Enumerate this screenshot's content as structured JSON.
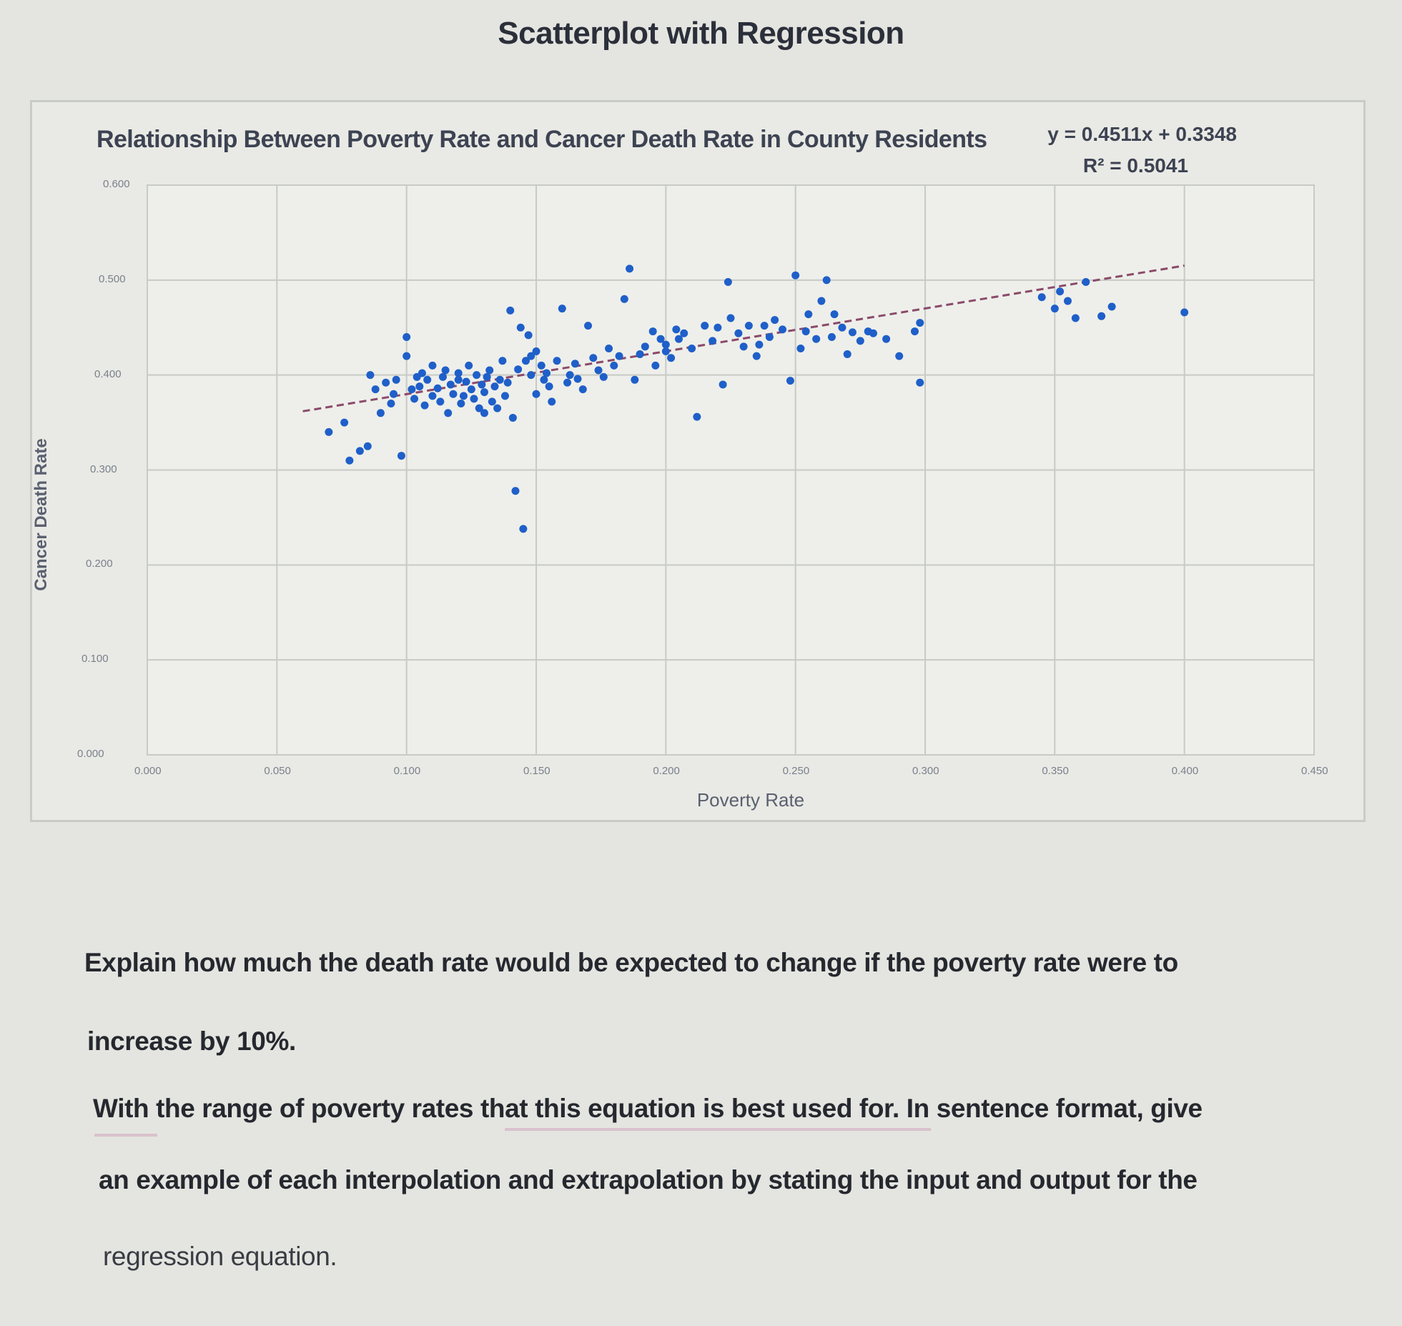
{
  "page": {
    "title": "Scatterplot with Regression"
  },
  "chart": {
    "title": "Relationship Between Poverty Rate and Cancer Death Rate in County Residents",
    "trendline_equation": "y = 0.4511x + 0.3348",
    "trendline_r2": "R² = 0.5041",
    "x_axis_label": "Poverty Rate",
    "y_axis_label": "Cancer Death Rate",
    "x_ticks": [
      "0.000",
      "0.050",
      "0.100",
      "0.150",
      "0.200",
      "0.250",
      "0.300",
      "0.350",
      "0.400",
      "0.450"
    ],
    "y_ticks": [
      "0.000",
      "0.100",
      "0.200",
      "0.300",
      "0.400",
      "0.500",
      "0.600"
    ],
    "marker_color": "#1f5fc9",
    "trendline_color": "#8a4a6a"
  },
  "chart_data": {
    "type": "scatter",
    "title": "Relationship Between Poverty Rate and Cancer Death Rate in County Residents",
    "xlabel": "Poverty Rate",
    "ylabel": "Cancer Death Rate",
    "xlim": [
      0,
      0.45
    ],
    "ylim": [
      0,
      0.6
    ],
    "grid": true,
    "legend": "none",
    "trendline": {
      "type": "linear",
      "slope": 0.4511,
      "intercept": 0.3348,
      "r2": 0.5041,
      "x_range": [
        0.06,
        0.4
      ],
      "style": "dashed"
    },
    "series": [
      {
        "name": "Counties",
        "x": [
          0.07,
          0.076,
          0.078,
          0.082,
          0.085,
          0.086,
          0.088,
          0.09,
          0.092,
          0.094,
          0.095,
          0.096,
          0.098,
          0.1,
          0.1,
          0.102,
          0.103,
          0.104,
          0.105,
          0.106,
          0.107,
          0.108,
          0.11,
          0.11,
          0.112,
          0.113,
          0.114,
          0.115,
          0.116,
          0.117,
          0.118,
          0.12,
          0.12,
          0.121,
          0.122,
          0.123,
          0.124,
          0.125,
          0.126,
          0.127,
          0.128,
          0.129,
          0.13,
          0.13,
          0.131,
          0.132,
          0.133,
          0.134,
          0.135,
          0.136,
          0.137,
          0.138,
          0.139,
          0.14,
          0.141,
          0.142,
          0.143,
          0.144,
          0.145,
          0.146,
          0.147,
          0.148,
          0.148,
          0.15,
          0.15,
          0.152,
          0.153,
          0.154,
          0.155,
          0.156,
          0.158,
          0.16,
          0.162,
          0.163,
          0.165,
          0.166,
          0.168,
          0.17,
          0.172,
          0.174,
          0.176,
          0.178,
          0.18,
          0.182,
          0.184,
          0.186,
          0.188,
          0.19,
          0.192,
          0.195,
          0.196,
          0.198,
          0.2,
          0.2,
          0.202,
          0.204,
          0.205,
          0.207,
          0.21,
          0.212,
          0.215,
          0.218,
          0.22,
          0.222,
          0.224,
          0.225,
          0.228,
          0.23,
          0.232,
          0.235,
          0.236,
          0.238,
          0.24,
          0.242,
          0.245,
          0.248,
          0.25,
          0.252,
          0.254,
          0.255,
          0.258,
          0.26,
          0.262,
          0.264,
          0.265,
          0.268,
          0.27,
          0.272,
          0.275,
          0.278,
          0.28,
          0.285,
          0.29,
          0.296,
          0.298,
          0.298,
          0.345,
          0.35,
          0.352,
          0.355,
          0.358,
          0.362,
          0.368,
          0.372,
          0.4
        ],
        "y": [
          0.34,
          0.35,
          0.31,
          0.32,
          0.325,
          0.4,
          0.385,
          0.36,
          0.392,
          0.37,
          0.38,
          0.395,
          0.315,
          0.44,
          0.42,
          0.385,
          0.375,
          0.398,
          0.388,
          0.402,
          0.368,
          0.395,
          0.378,
          0.41,
          0.386,
          0.372,
          0.398,
          0.405,
          0.36,
          0.39,
          0.38,
          0.395,
          0.402,
          0.37,
          0.378,
          0.393,
          0.41,
          0.385,
          0.375,
          0.4,
          0.365,
          0.39,
          0.382,
          0.36,
          0.398,
          0.405,
          0.372,
          0.388,
          0.365,
          0.395,
          0.415,
          0.378,
          0.392,
          0.468,
          0.355,
          0.278,
          0.406,
          0.45,
          0.238,
          0.415,
          0.442,
          0.4,
          0.42,
          0.38,
          0.425,
          0.41,
          0.395,
          0.402,
          0.388,
          0.372,
          0.415,
          0.47,
          0.392,
          0.4,
          0.412,
          0.396,
          0.385,
          0.452,
          0.418,
          0.405,
          0.398,
          0.428,
          0.41,
          0.42,
          0.48,
          0.512,
          0.395,
          0.422,
          0.43,
          0.446,
          0.41,
          0.438,
          0.432,
          0.425,
          0.418,
          0.448,
          0.438,
          0.444,
          0.428,
          0.356,
          0.452,
          0.436,
          0.45,
          0.39,
          0.498,
          0.46,
          0.444,
          0.43,
          0.452,
          0.42,
          0.432,
          0.452,
          0.44,
          0.458,
          0.448,
          0.394,
          0.505,
          0.428,
          0.446,
          0.464,
          0.438,
          0.478,
          0.5,
          0.44,
          0.464,
          0.45,
          0.422,
          0.445,
          0.436,
          0.446,
          0.444,
          0.438,
          0.42,
          0.446,
          0.455,
          0.392,
          0.482,
          0.47,
          0.488,
          0.478,
          0.46,
          0.498,
          0.462,
          0.472,
          0.466
        ]
      }
    ]
  },
  "questions": {
    "line1": "Explain how much the death rate would be expected to change if the poverty rate were to",
    "line2": "increase by 10%.",
    "line3": "With the range of poverty rates that this equation is best used for. In sentence format, give",
    "line4": "an example of each interpolation and extrapolation by stating the input and output for the",
    "line5": "regression equation."
  }
}
